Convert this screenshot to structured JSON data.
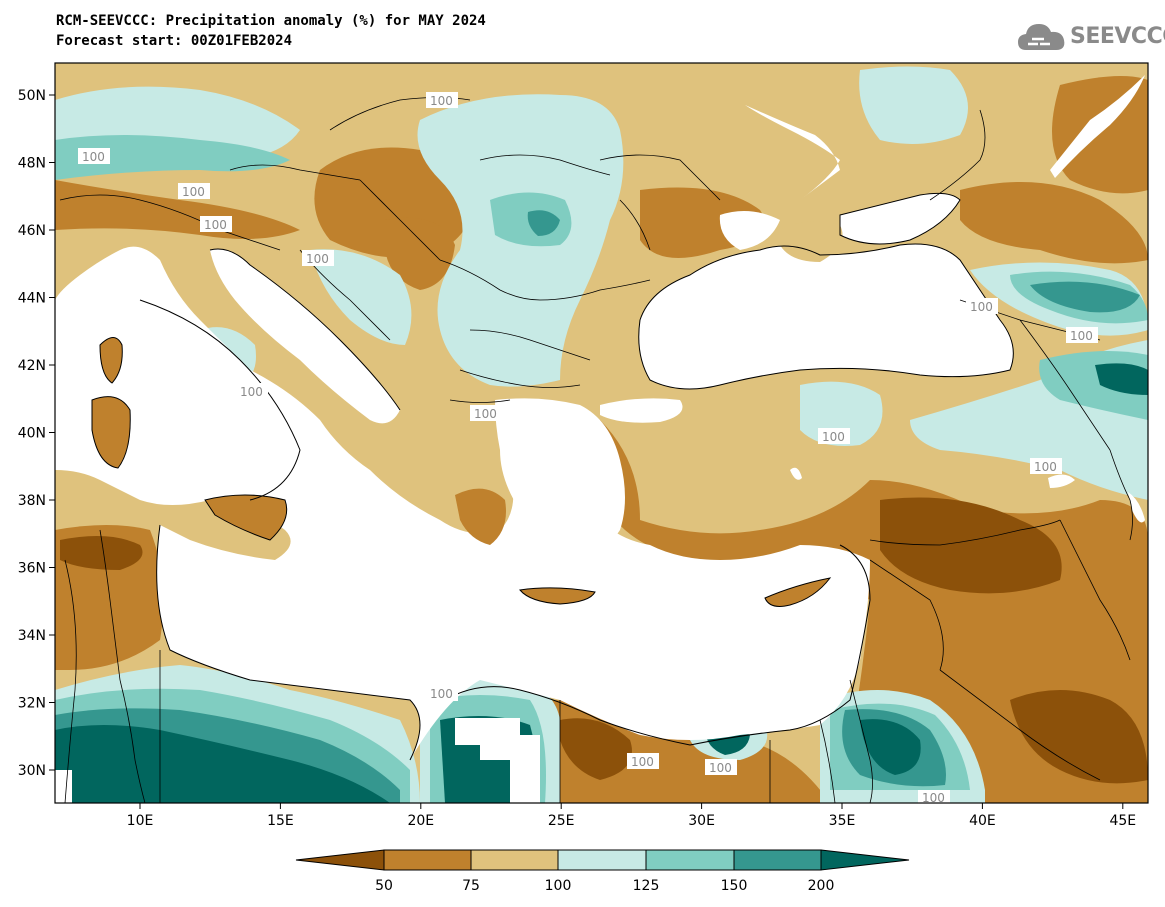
{
  "header": {
    "title_line1": "RCM-SEEVCCC: Precipitation anomaly (%) for MAY 2024",
    "title_line2": "Forecast start: 00Z01FEB2024",
    "logo_text": "SEEVCCC"
  },
  "map": {
    "lat_ticks": [
      "50N",
      "48N",
      "46N",
      "44N",
      "42N",
      "40N",
      "38N",
      "36N",
      "34N",
      "32N",
      "30N"
    ],
    "lon_ticks": [
      "10E",
      "15E",
      "20E",
      "25E",
      "30E",
      "35E",
      "40E",
      "45E"
    ],
    "contour_label": "100",
    "colors": {
      "lt50": "#8c510a",
      "50_75": "#bf812d",
      "75_100": "#dfc27d",
      "100_125": "#c7eae5",
      "125_150": "#80cdc1",
      "150_200": "#35978f",
      "gt200": "#01665e",
      "sea": "#ffffff"
    }
  },
  "colorbar": {
    "labels": [
      "50",
      "75",
      "100",
      "125",
      "150",
      "200"
    ]
  }
}
